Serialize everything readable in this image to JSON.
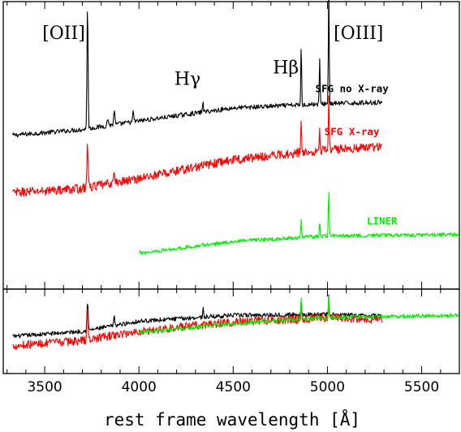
{
  "chart_data": {
    "type": "line",
    "xlabel": "rest frame wavelength [Å]",
    "ylabel": "",
    "xlim": [
      3280,
      5700
    ],
    "xticks": [
      3500,
      4000,
      4500,
      5000,
      5500
    ],
    "xticks_minor_step": 100,
    "grid": false,
    "legend": "labels placed next to each spectrum",
    "annotations": [
      {
        "text": "[OII]",
        "x": 3727,
        "y": 8.7
      },
      {
        "text": "Hγ",
        "x": 4340,
        "y": 7.1
      },
      {
        "text": "Hβ",
        "x": 4861,
        "y": 7.5
      },
      {
        "text": "[OIII]",
        "x": 5007,
        "y": 8.7
      }
    ],
    "panels": [
      {
        "name": "top",
        "ylim": [
          0,
          10
        ],
        "series": [
          {
            "name": "SFG no X-ray",
            "color": "#000000",
            "x_range": [
              3330,
              5290
            ],
            "continuum": [
              [
                3330,
                5.35
              ],
              [
                3700,
                5.55
              ],
              [
                4000,
                5.85
              ],
              [
                4500,
                6.3
              ],
              [
                5000,
                6.45
              ],
              [
                5290,
                6.5
              ]
            ],
            "noise": 0.08,
            "label_at": [
              5130,
              6.85
            ],
            "lines": [
              {
                "wave": 3727,
                "height": 4.3,
                "width": 4
              },
              {
                "wave": 3835,
                "height": 0.25,
                "width": 5
              },
              {
                "wave": 3869,
                "height": 0.55,
                "width": 4
              },
              {
                "wave": 3970,
                "height": 0.35,
                "width": 4
              },
              {
                "wave": 4340,
                "height": 0.45,
                "width": 3
              },
              {
                "wave": 4861,
                "height": 2.1,
                "width": 3
              },
              {
                "wave": 4959,
                "height": 1.6,
                "width": 3
              },
              {
                "wave": 5007,
                "height": 4.3,
                "width": 3
              }
            ]
          },
          {
            "name": "SFG X-ray",
            "color": "#ff0000",
            "x_range": [
              3330,
              5290
            ],
            "continuum": [
              [
                3330,
                3.35
              ],
              [
                3700,
                3.5
              ],
              [
                4000,
                3.85
              ],
              [
                4500,
                4.5
              ],
              [
                5000,
                4.85
              ],
              [
                5290,
                4.95
              ]
            ],
            "noise": 0.16,
            "label_at": [
              5130,
              5.35
            ],
            "lines": [
              {
                "wave": 3727,
                "height": 1.7,
                "width": 4
              },
              {
                "wave": 3869,
                "height": 0.35,
                "width": 4
              },
              {
                "wave": 4861,
                "height": 1.1,
                "width": 3
              },
              {
                "wave": 4959,
                "height": 0.7,
                "width": 3
              },
              {
                "wave": 5007,
                "height": 1.8,
                "width": 3
              }
            ]
          },
          {
            "name": "LINER",
            "color": "#00ee00",
            "x_range": [
              4000,
              5700
            ],
            "continuum": [
              [
                4000,
                1.25
              ],
              [
                4500,
                1.65
              ],
              [
                5000,
                1.85
              ],
              [
                5700,
                1.9
              ]
            ],
            "noise": 0.07,
            "label_at": [
              5290,
              2.25
            ],
            "lines": [
              {
                "wave": 4861,
                "height": 0.7,
                "width": 3
              },
              {
                "wave": 4959,
                "height": 0.55,
                "width": 3
              },
              {
                "wave": 5007,
                "height": 1.75,
                "width": 3
              }
            ]
          }
        ]
      },
      {
        "name": "bottom",
        "ylim": [
          0,
          10
        ],
        "series": [
          {
            "name": "SFG no X-ray",
            "color": "#000000",
            "x_range": [
              3330,
              5290
            ],
            "continuum": [
              [
                3330,
                4.4
              ],
              [
                3700,
                5.0
              ],
              [
                4000,
                6.2
              ],
              [
                4500,
                6.9
              ],
              [
                5000,
                7.0
              ],
              [
                5290,
                6.8
              ]
            ],
            "noise": 0.25,
            "lines": [
              {
                "wave": 3727,
                "height": 3.5,
                "width": 4
              },
              {
                "wave": 3869,
                "height": 1.0,
                "width": 4
              },
              {
                "wave": 4340,
                "height": 1.2,
                "width": 3
              },
              {
                "wave": 4861,
                "height": 1.8,
                "width": 3
              },
              {
                "wave": 5007,
                "height": 2.2,
                "width": 3
              }
            ]
          },
          {
            "name": "SFG X-ray",
            "color": "#ff0000",
            "x_range": [
              3330,
              5290
            ],
            "continuum": [
              [
                3330,
                3.3
              ],
              [
                3700,
                3.9
              ],
              [
                4000,
                5.0
              ],
              [
                4500,
                6.1
              ],
              [
                5000,
                6.6
              ],
              [
                5290,
                6.4
              ]
            ],
            "noise": 0.5,
            "lines": [
              {
                "wave": 3727,
                "height": 3.6,
                "width": 4
              },
              {
                "wave": 4861,
                "height": 1.6,
                "width": 3
              },
              {
                "wave": 5007,
                "height": 1.8,
                "width": 3
              }
            ]
          },
          {
            "name": "LINER",
            "color": "#00ee00",
            "x_range": [
              4000,
              5700
            ],
            "continuum": [
              [
                4000,
                4.9
              ],
              [
                4500,
                5.9
              ],
              [
                5000,
                6.6
              ],
              [
                5700,
                6.9
              ]
            ],
            "noise": 0.25,
            "lines": [
              {
                "wave": 4861,
                "height": 2.4,
                "width": 3
              },
              {
                "wave": 5007,
                "height": 2.6,
                "width": 3
              }
            ]
          }
        ]
      }
    ]
  }
}
